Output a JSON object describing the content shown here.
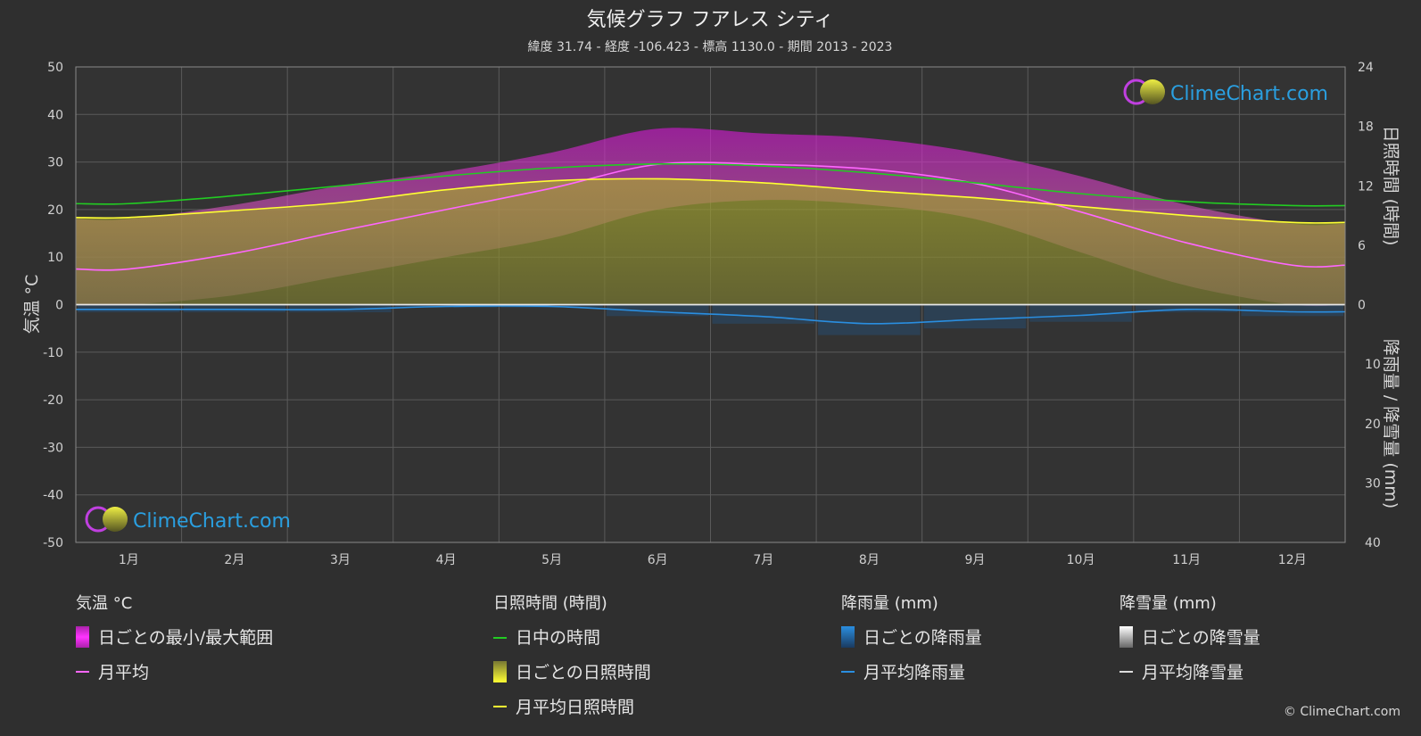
{
  "title": "気候グラフ フアレス シティ",
  "subtitle": "緯度 31.74 - 経度 -106.423 - 標高 1130.0 - 期間 2013 - 2023",
  "watermark": "ClimeChart.com",
  "copyright": "© ClimeChart.com",
  "colors": {
    "background": "#2f2f2f",
    "grid": "#5a5a5a",
    "temp_range": "#d018d0",
    "temp_avg": "#ff66ff",
    "daylight": "#22cc22",
    "sunshine": "#c8c820",
    "sunshine_avg": "#ffff33",
    "rain": "#2a7fd0",
    "rain_avg": "#2a8ee0",
    "snow": "#dddddd",
    "logo_text": "#2a9fe0"
  },
  "chart_data": {
    "type": "area",
    "categories": [
      "1月",
      "2月",
      "3月",
      "4月",
      "5月",
      "6月",
      "7月",
      "8月",
      "9月",
      "10月",
      "11月",
      "12月"
    ],
    "left_axis": {
      "label": "気温 °C",
      "range": [
        -50,
        50
      ],
      "ticks": [
        "50",
        "40",
        "30",
        "20",
        "10",
        "0",
        "-10",
        "-20",
        "-30",
        "-40",
        "-50"
      ]
    },
    "right_axis_top": {
      "label": "日照時間 (時間)",
      "range": [
        0,
        24
      ],
      "ticks": [
        "24",
        "18",
        "12",
        "6",
        "0"
      ]
    },
    "right_axis_bottom": {
      "label": "降雨量 / 降雪量 (mm)",
      "range": [
        0,
        40
      ],
      "ticks": [
        "0",
        "10",
        "20",
        "30",
        "40"
      ]
    },
    "grid": true,
    "series": [
      {
        "name": "月平均",
        "axis": "temperature",
        "values": [
          7.5,
          10.8,
          15.5,
          20,
          24.5,
          29.5,
          29.5,
          28.5,
          25.5,
          19.5,
          13,
          8.3
        ]
      },
      {
        "name": "日中の時間",
        "axis": "hours",
        "values": [
          10.2,
          11,
          12,
          13,
          13.8,
          14.2,
          14,
          13.3,
          12.3,
          11.2,
          10.4,
          10
        ]
      },
      {
        "name": "月平均日照時間",
        "axis": "hours",
        "values": [
          8.8,
          9.5,
          10.3,
          11.6,
          12.5,
          12.7,
          12.3,
          11.5,
          10.8,
          9.9,
          9,
          8.3
        ]
      },
      {
        "name": "月平均降雨量",
        "axis": "precip_mm",
        "values": [
          0.8,
          0.8,
          0.8,
          0.3,
          0.3,
          1.2,
          2,
          3.2,
          2.5,
          1.8,
          0.8,
          1.2
        ]
      },
      {
        "name": "月平均降雪量",
        "axis": "precip_mm",
        "values": [
          0,
          0,
          0,
          0,
          0,
          0,
          0,
          0,
          0,
          0,
          0,
          0
        ]
      }
    ],
    "daily_range": {
      "name": "日ごとの最小/最大範囲",
      "min": [
        0,
        2,
        6,
        10,
        14,
        20,
        22,
        21,
        18,
        11,
        4,
        0
      ],
      "max": [
        18,
        21,
        25,
        28,
        32,
        37,
        36,
        35,
        32,
        27,
        21,
        17
      ]
    },
    "daily_sunshine": {
      "name": "日ごとの日照時間"
    },
    "daily_rain": {
      "name": "日ごとの降雨量"
    },
    "daily_snow": {
      "name": "日ごとの降雪量"
    }
  },
  "legend": {
    "temperature": {
      "heading": "気温 °C",
      "items": [
        "日ごとの最小/最大範囲",
        "月平均"
      ]
    },
    "sunshine": {
      "heading": "日照時間 (時間)",
      "items": [
        "日中の時間",
        "日ごとの日照時間",
        "月平均日照時間"
      ]
    },
    "rain": {
      "heading": "降雨量 (mm)",
      "items": [
        "日ごとの降雨量",
        "月平均降雨量"
      ]
    },
    "snow": {
      "heading": "降雪量 (mm)",
      "items": [
        "日ごとの降雪量",
        "月平均降雪量"
      ]
    }
  }
}
